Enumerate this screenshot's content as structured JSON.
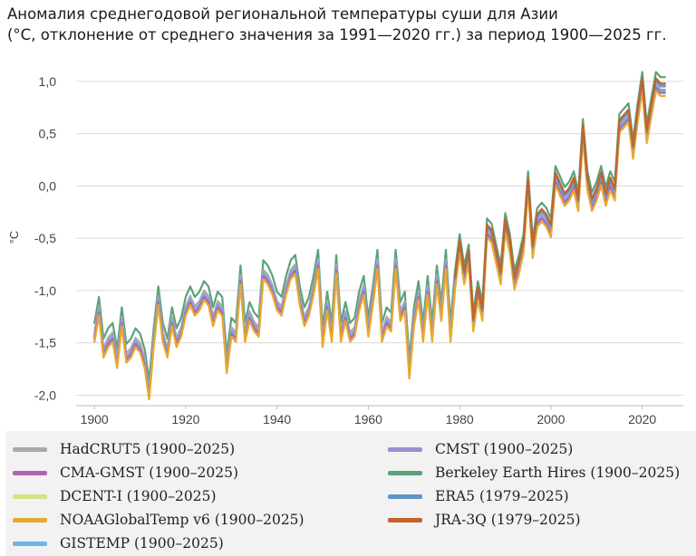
{
  "title": {
    "line1": "Аномалия среднегодовой региональной температуры суши для Азии",
    "line2": "(°C, отклонение от среднего значения за 1991—2020 гг.) за период 1900—2025 гг."
  },
  "chart_data": {
    "type": "line",
    "title": "Аномалия среднегодовой региональной температуры суши для Азии (°C, отклонение от среднего значения за 1991—2020 гг.) за период 1900—2025 гг.",
    "ylabel": "°C",
    "xlabel": "",
    "xlim": [
      1896,
      2029
    ],
    "ylim": [
      -2.1,
      1.12
    ],
    "xticks": [
      "1900",
      "1920",
      "1940",
      "1960",
      "1980",
      "2000",
      "2020"
    ],
    "yticks": [
      "1,0",
      "0,5",
      "0,0",
      "-0,5",
      "-1,0",
      "-1,5",
      "-2,0"
    ],
    "ytick_values": [
      1.0,
      0.5,
      0.0,
      -0.5,
      -1.0,
      -1.5,
      -2.0
    ],
    "grid": "horizontal",
    "legend_position": "bottom",
    "base": {
      "start_year": 1900,
      "values": [
        -1.4,
        -1.15,
        -1.55,
        -1.45,
        -1.4,
        -1.65,
        -1.25,
        -1.6,
        -1.55,
        -1.45,
        -1.5,
        -1.65,
        -1.95,
        -1.45,
        -1.05,
        -1.4,
        -1.55,
        -1.25,
        -1.45,
        -1.35,
        -1.15,
        -1.05,
        -1.15,
        -1.1,
        -1.0,
        -1.05,
        -1.25,
        -1.1,
        -1.15,
        -1.7,
        -1.35,
        -1.4,
        -0.85,
        -1.4,
        -1.2,
        -1.3,
        -1.35,
        -0.8,
        -0.85,
        -0.95,
        -1.1,
        -1.15,
        -0.95,
        -0.8,
        -0.75,
        -1.05,
        -1.25,
        -1.15,
        -0.95,
        -0.7,
        -1.45,
        -1.1,
        -1.4,
        -0.75,
        -1.4,
        -1.2,
        -1.4,
        -1.35,
        -1.1,
        -0.95,
        -1.35,
        -1.05,
        -0.7,
        -1.4,
        -1.25,
        -1.3,
        -0.7,
        -1.2,
        -1.1,
        -1.75,
        -1.25,
        -1.0,
        -1.4,
        -0.95,
        -1.4,
        -0.85,
        -1.2,
        -0.7,
        -1.4,
        -0.9,
        -0.55,
        -0.85,
        -0.65,
        -1.3,
        -1.0,
        -1.2,
        -0.4,
        -0.45,
        -0.65,
        -0.85,
        -0.35,
        -0.55,
        -0.9,
        -0.75,
        -0.55,
        0.05,
        -0.6,
        -0.3,
        -0.25,
        -0.3,
        -0.4,
        0.1,
        0.0,
        -0.1,
        -0.05,
        0.05,
        -0.15,
        0.55,
        0.05,
        -0.15,
        -0.05,
        0.1,
        -0.1,
        0.05,
        -0.05,
        0.6,
        0.65,
        0.7,
        0.35,
        0.7,
        1.0,
        0.5,
        0.75,
        1.0,
        0.95,
        0.95
      ]
    },
    "series": [
      {
        "name": "HadCRUT5 (1900–2025)",
        "color": "#aaaaaa",
        "offset": 0.0,
        "start_year": 1900
      },
      {
        "name": "CMST (1900–2025)",
        "color": "#9b8fcf",
        "offset": -0.03,
        "start_year": 1900
      },
      {
        "name": "CMA-GMST (1900–2025)",
        "color": "#b163b1",
        "offset": -0.06,
        "start_year": 1900
      },
      {
        "name": "Berkeley Earth Hires (1900–2025)",
        "color": "#5ba27a",
        "offset": 0.09,
        "start_year": 1900
      },
      {
        "name": "DCENT-I (1900–2025)",
        "color": "#d8df85",
        "offset": -0.05,
        "start_year": 1900
      },
      {
        "name": "ERA5 (1979–2025)",
        "color": "#5f94c7",
        "offset": 0.01,
        "start_year": 1979
      },
      {
        "name": "NOAAGlobalTemp v6 (1900–2025)",
        "color": "#e8a92f",
        "offset": -0.09,
        "start_year": 1900
      },
      {
        "name": "JRA-3Q (1979–2025)",
        "color": "#c5622b",
        "offset": 0.03,
        "start_year": 1979
      },
      {
        "name": "GISTEMP (1900–2025)",
        "color": "#6fb3e6",
        "offset": -0.04,
        "start_year": 1900
      }
    ]
  },
  "legend": {
    "items": [
      {
        "label": "HadCRUT5 (1900–2025)",
        "color": "#aaaaaa"
      },
      {
        "label": "CMST (1900–2025)",
        "color": "#9b8fcf"
      },
      {
        "label": "CMA-GMST (1900–2025)",
        "color": "#b163b1"
      },
      {
        "label": "Berkeley Earth Hires (1900–2025)",
        "color": "#5ba27a"
      },
      {
        "label": "DCENT-I (1900–2025)",
        "color": "#d8df85"
      },
      {
        "label": "ERA5 (1979–2025)",
        "color": "#5f94c7"
      },
      {
        "label": "NOAAGlobalTemp v6 (1900–2025)",
        "color": "#e8a92f"
      },
      {
        "label": "JRA-3Q (1979–2025)",
        "color": "#c5622b"
      },
      {
        "label": "GISTEMP (1900–2025)",
        "color": "#6fb3e6"
      }
    ]
  }
}
